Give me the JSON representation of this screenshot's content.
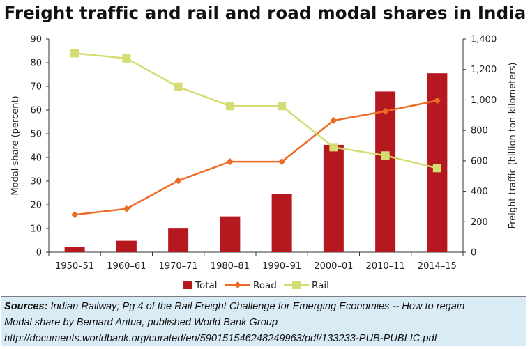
{
  "chart_data": {
    "type": "bar",
    "title": "Freight traffic and rail and road modal shares in India",
    "categories": [
      "1950–51",
      "1960–61",
      "1970–71",
      "1980–81",
      "1990–91",
      "2000–01",
      "2010–11",
      "2014–15"
    ],
    "ylabel_left": "Modal share (percent)",
    "ylabel_right": "Freight traffic (billion ton-kilometers)",
    "ylim_left": [
      0,
      90
    ],
    "yticks_left": [
      "0",
      "10",
      "20",
      "30",
      "40",
      "50",
      "60",
      "70",
      "80",
      "90"
    ],
    "ylim_right": [
      0,
      1400
    ],
    "yticks_right": [
      "0",
      "200",
      "400",
      "600",
      "800",
      "1,000",
      "1,200",
      "1,400"
    ],
    "grid": false,
    "legend_position": "bottom",
    "series": [
      {
        "name": "Total",
        "type": "bar",
        "axis": "right",
        "color": "#b5191f",
        "values": [
          35,
          75,
          155,
          235,
          380,
          705,
          1055,
          1175
        ]
      },
      {
        "name": "Road",
        "type": "line",
        "axis": "left",
        "color": "#ec6b26",
        "marker": "diamond",
        "values": [
          15.8,
          18.3,
          30.2,
          38.2,
          38.2,
          55.6,
          59.5,
          64.0
        ]
      },
      {
        "name": "Rail",
        "type": "line",
        "axis": "left",
        "color": "#d6dc74",
        "marker": "square",
        "values": [
          84.0,
          81.8,
          69.8,
          61.7,
          61.7,
          44.3,
          40.8,
          35.5
        ]
      }
    ]
  },
  "sources": {
    "lead": "Sources:",
    "line1": " Indian Railway; Pg 4 of the Rail Freight Challenge for Emerging Economies -- How to regain",
    "line2": "Modal share by Bernard Aritua, published World Bank Group",
    "line3": "http://documents.worldbank.org/curated/en/590151546248249963/pdf/133233-PUB-PUBLIC.pdf"
  }
}
